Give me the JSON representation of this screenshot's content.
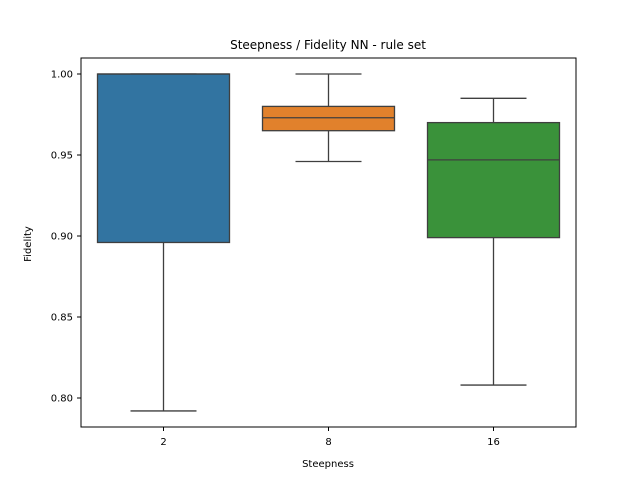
{
  "chart_data": {
    "type": "box",
    "title": "Steepness / Fidelity NN - rule set",
    "xlabel": "Steepness",
    "ylabel": "Fidelity",
    "ylim": [
      0.781,
      1.0
    ],
    "yticks": [
      "0.80",
      "0.85",
      "0.90",
      "0.95",
      "1.00"
    ],
    "ytick_values": [
      0.8,
      0.85,
      0.9,
      0.95,
      1.0
    ],
    "grid": false,
    "categories": [
      "2",
      "8",
      "16"
    ],
    "boxes": [
      {
        "category": "2",
        "whisker_low": 0.792,
        "q1": 0.896,
        "median": 1.0,
        "q3": 1.0,
        "whisker_high": 1.0,
        "color": "#3274a1"
      },
      {
        "category": "8",
        "whisker_low": 0.946,
        "q1": 0.965,
        "median": 0.973,
        "q3": 0.98,
        "whisker_high": 1.0,
        "color": "#e1812c"
      },
      {
        "category": "16",
        "whisker_low": 0.808,
        "q1": 0.899,
        "median": 0.947,
        "q3": 0.97,
        "whisker_high": 0.985,
        "color": "#3a923a"
      }
    ]
  }
}
